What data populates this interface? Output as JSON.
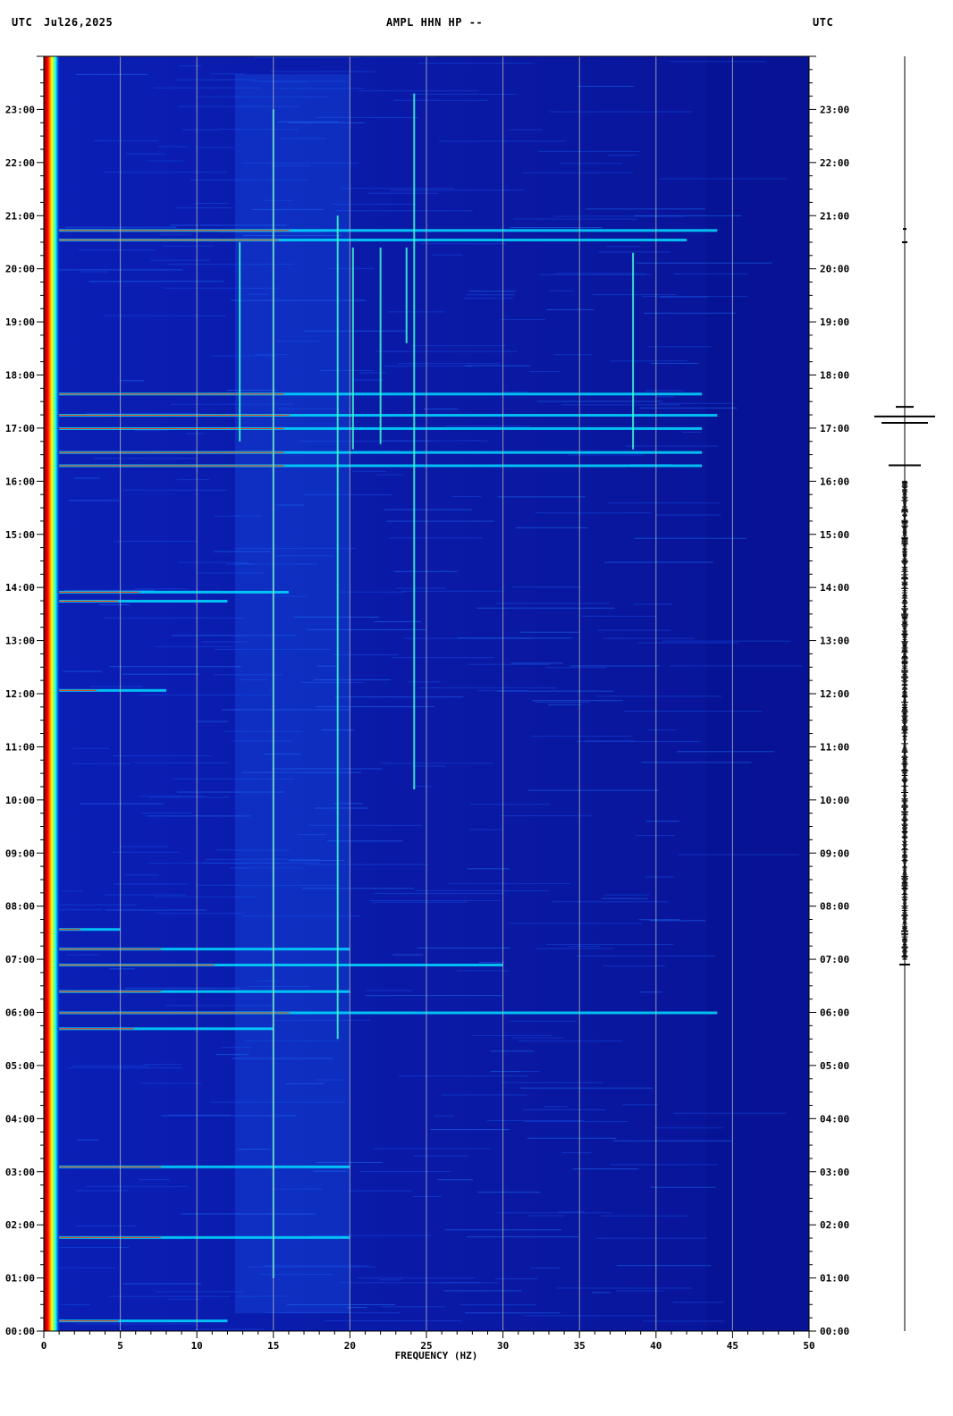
{
  "header": {
    "left_tz": "UTC",
    "date": "Jul26,2025",
    "station": "AMPL HHN HP --",
    "right_tz": "UTC"
  },
  "chart_data": {
    "type": "heatmap",
    "title": "AMPL HHN HP --",
    "xlabel": "FREQUENCY (HZ)",
    "ylabel": "UTC",
    "xlim": [
      0,
      50
    ],
    "ylim": [
      "00:00",
      "24:00"
    ],
    "x_ticks": [
      "0",
      "5",
      "10",
      "15",
      "20",
      "25",
      "30",
      "35",
      "40",
      "45",
      "50"
    ],
    "y_ticks": [
      "00:00",
      "01:00",
      "02:00",
      "03:00",
      "04:00",
      "05:00",
      "06:00",
      "07:00",
      "08:00",
      "09:00",
      "10:00",
      "11:00",
      "12:00",
      "13:00",
      "14:00",
      "15:00",
      "16:00",
      "17:00",
      "18:00",
      "19:00",
      "20:00",
      "21:00",
      "22:00",
      "23:00"
    ],
    "colormap": [
      "#00008b",
      "#0000ff",
      "#0080ff",
      "#00ffff",
      "#ffff00",
      "#ff0000",
      "#8b0000"
    ],
    "background_color": "#0a1a9e",
    "gridlines_hz": [
      5,
      10,
      15,
      20,
      25,
      30,
      35,
      40,
      45
    ],
    "vertical_lines": [
      {
        "freq": 12.8,
        "start_h": 16.75,
        "end_h": 20.5
      },
      {
        "freq": 15.0,
        "start_h": 1.0,
        "end_h": 23.0
      },
      {
        "freq": 19.2,
        "start_h": 5.5,
        "end_h": 21.0
      },
      {
        "freq": 20.2,
        "start_h": 16.6,
        "end_h": 20.4
      },
      {
        "freq": 22.0,
        "start_h": 16.7,
        "end_h": 20.4
      },
      {
        "freq": 23.7,
        "start_h": 18.6,
        "end_h": 20.4
      },
      {
        "freq": 24.2,
        "start_h": 10.2,
        "end_h": 23.3
      },
      {
        "freq": 38.5,
        "start_h": 16.6,
        "end_h": 20.3
      }
    ],
    "horizontal_events": [
      {
        "time_h": 0.2,
        "start_hz": 1,
        "end_hz": 12
      },
      {
        "time_h": 1.77,
        "start_hz": 1,
        "end_hz": 20
      },
      {
        "time_h": 3.1,
        "start_hz": 1,
        "end_hz": 20
      },
      {
        "time_h": 5.7,
        "start_hz": 1,
        "end_hz": 15
      },
      {
        "time_h": 6.0,
        "start_hz": 1,
        "end_hz": 44
      },
      {
        "time_h": 6.4,
        "start_hz": 1,
        "end_hz": 20
      },
      {
        "time_h": 6.9,
        "start_hz": 1,
        "end_hz": 30
      },
      {
        "time_h": 7.2,
        "start_hz": 1,
        "end_hz": 20
      },
      {
        "time_h": 7.57,
        "start_hz": 1,
        "end_hz": 5
      },
      {
        "time_h": 12.07,
        "start_hz": 1,
        "end_hz": 8
      },
      {
        "time_h": 13.75,
        "start_hz": 1,
        "end_hz": 12
      },
      {
        "time_h": 13.92,
        "start_hz": 1,
        "end_hz": 16
      },
      {
        "time_h": 16.3,
        "start_hz": 1,
        "end_hz": 43
      },
      {
        "time_h": 16.55,
        "start_hz": 1,
        "end_hz": 43
      },
      {
        "time_h": 17.0,
        "start_hz": 1,
        "end_hz": 43
      },
      {
        "time_h": 17.25,
        "start_hz": 1,
        "end_hz": 44
      },
      {
        "time_h": 17.65,
        "start_hz": 1,
        "end_hz": 43
      },
      {
        "time_h": 20.55,
        "start_hz": 1,
        "end_hz": 42
      },
      {
        "time_h": 20.73,
        "start_hz": 1,
        "end_hz": 44
      }
    ]
  },
  "seismogram": {
    "events": [
      {
        "time_h": 17.22,
        "amplitude": 34
      },
      {
        "time_h": 17.1,
        "amplitude": 26
      },
      {
        "time_h": 16.3,
        "amplitude": 18
      },
      {
        "time_h": 17.4,
        "amplitude": 10
      },
      {
        "time_h": 6.9,
        "amplitude": 6
      },
      {
        "time_h": 20.5,
        "amplitude": 3
      },
      {
        "time_h": 20.75,
        "amplitude": 2
      }
    ]
  }
}
